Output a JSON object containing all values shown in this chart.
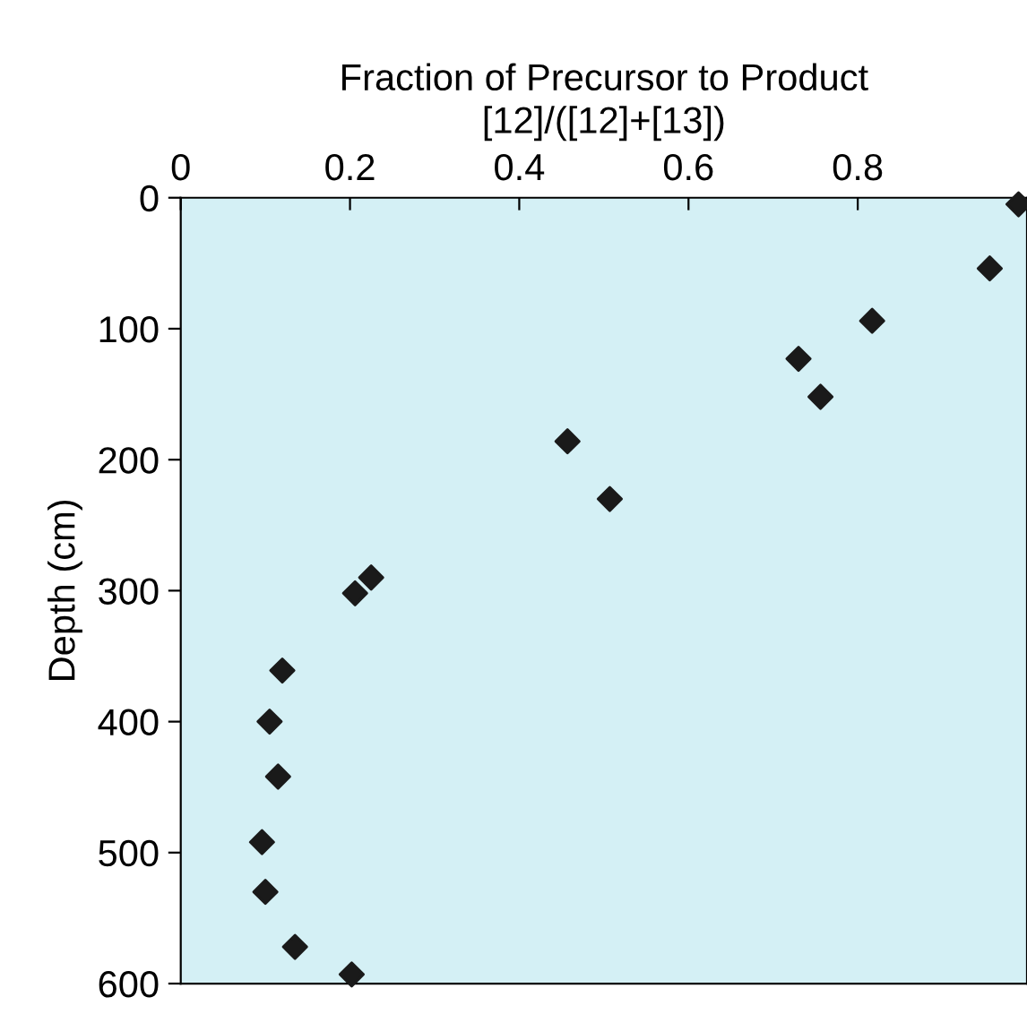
{
  "chart_data": {
    "type": "scatter",
    "xlabel": "Fraction of Precursor to Product\n[12]/([12]+[13])",
    "ylabel": "Depth (cm)",
    "x": [
      0.99,
      0.956,
      0.817,
      0.73,
      0.756,
      0.457,
      0.507,
      0.225,
      0.206,
      0.12,
      0.105,
      0.115,
      0.096,
      0.1,
      0.135,
      0.202
    ],
    "values": [
      5,
      54,
      94,
      123,
      152,
      186,
      230,
      290,
      302,
      361,
      400,
      442,
      492,
      530,
      572,
      593
    ],
    "color": "#1a1a1a",
    "marker": "diamond",
    "xlim": [
      0,
      1.0
    ],
    "xticks": [
      0,
      0.2,
      0.4,
      0.6,
      0.8
    ],
    "ylim": [
      600,
      0
    ],
    "yticks": [
      0,
      100,
      200,
      300,
      400,
      500,
      600
    ],
    "grid": false,
    "legend": false
  }
}
